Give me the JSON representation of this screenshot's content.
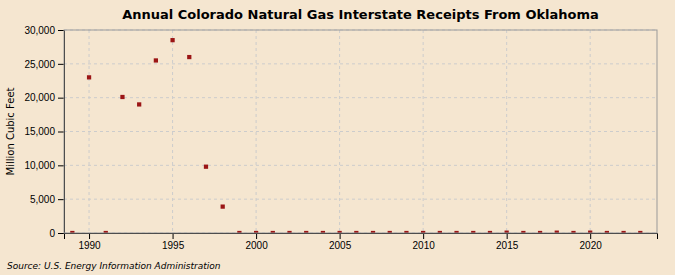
{
  "chart_data": {
    "type": "scatter",
    "title": "Annual Colorado Natural Gas Interstate Receipts From Oklahoma",
    "ylabel": "Million Cubic Feet",
    "source": "Source: U.S. Energy Information Administration",
    "x": [
      1989,
      1990,
      1991,
      1992,
      1993,
      1994,
      1995,
      1996,
      1997,
      1998,
      1999,
      2000,
      2001,
      2002,
      2003,
      2004,
      2005,
      2006,
      2007,
      2008,
      2009,
      2010,
      2011,
      2012,
      2013,
      2014,
      2015,
      2016,
      2017,
      2018,
      2019,
      2020,
      2021,
      2022,
      2023
    ],
    "values": [
      0,
      23000,
      0,
      20100,
      19000,
      25500,
      28500,
      26000,
      9800,
      3900,
      0,
      0,
      0,
      0,
      0,
      0,
      0,
      0,
      0,
      0,
      0,
      0,
      0,
      0,
      0,
      0,
      50,
      0,
      0,
      50,
      0,
      50,
      0,
      0,
      0
    ],
    "color": "#9b1515",
    "marker": "square",
    "xlim": [
      1988.5,
      2024
    ],
    "ylim": [
      0,
      30000
    ],
    "xticks": [
      1990,
      1995,
      2000,
      2005,
      2010,
      2015,
      2020
    ],
    "yticks": [
      0,
      {
        "value": 5000,
        "label": "5,000"
      },
      {
        "value": 10000,
        "label": "10,000"
      },
      {
        "value": 15000,
        "label": "15,000"
      },
      {
        "value": 20000,
        "label": "20,000"
      },
      {
        "value": 25000,
        "label": "25,000"
      },
      {
        "value": 30000,
        "label": "30,000"
      }
    ],
    "grid": true
  }
}
